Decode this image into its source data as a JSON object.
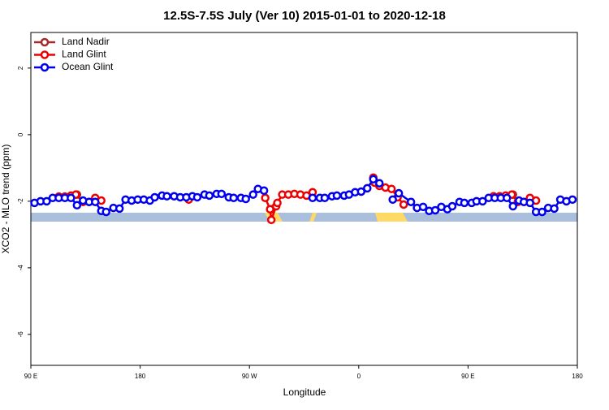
{
  "chart_data": {
    "type": "line",
    "title": "12.5S-7.5S July (Ver 10)   2015-01-01 to 2020-12-18",
    "xlabel": "Longitude",
    "ylabel": "XCO2 - MLO trend (ppm)",
    "xlim": [
      90,
      540
    ],
    "ylim": [
      -6.93,
      3.07
    ],
    "xticks": [
      {
        "value": 90,
        "label": "90 E"
      },
      180,
      {
        "value": 270,
        "label": "90 W"
      },
      {
        "value": 360,
        "label": "0"
      },
      {
        "value": 450,
        "label": "90 E"
      },
      {
        "value": 540,
        "label": "180"
      }
    ],
    "yticks": [
      2,
      0,
      -2,
      -4,
      -6
    ],
    "legend": "top-left",
    "series": [
      {
        "name": "Land Nadir",
        "color": "#a52a2a",
        "x": [
          128,
          null,
          288,
          null,
          487
        ],
        "values": [
          -1.8,
          null,
          -2.24,
          null,
          -1.8
        ]
      },
      {
        "name": "Land Glint",
        "color": "#ee0000",
        "x": [
          113,
          118,
          123,
          127,
          133,
          138,
          143,
          148,
          null,
          220,
          null,
          283,
          287,
          288,
          292,
          293,
          297,
          302,
          307,
          312,
          317,
          322,
          null,
          372,
          373,
          377,
          382,
          387,
          392,
          397,
          null,
          471,
          476,
          481,
          486,
          491,
          496,
          501,
          506
        ],
        "values": [
          -1.86,
          -1.86,
          -1.83,
          -1.8,
          -2.02,
          -2.02,
          -1.9,
          -1.98,
          null,
          -1.95,
          null,
          -1.9,
          -2.24,
          -2.56,
          -2.15,
          -2.05,
          -1.8,
          -1.8,
          -1.78,
          -1.8,
          -1.83,
          -1.73,
          null,
          -1.29,
          -1.44,
          -1.54,
          -1.59,
          -1.63,
          -1.88,
          -2.1,
          null,
          -1.85,
          -1.85,
          -1.83,
          -1.8,
          -2.02,
          -2.02,
          -1.9,
          -1.98
        ]
      },
      {
        "name": "Ocean Glint",
        "color": "#0000ee",
        "x": [
          93,
          98,
          103,
          108,
          113,
          118,
          123,
          128,
          133,
          138,
          143,
          148,
          152,
          158,
          163,
          168,
          173,
          178,
          183,
          188,
          192,
          198,
          202,
          208,
          213,
          218,
          223,
          227,
          233,
          237,
          243,
          247,
          253,
          257,
          263,
          267,
          273,
          277,
          282,
          null,
          322,
          328,
          332,
          338,
          342,
          348,
          352,
          357,
          362,
          367,
          372,
          377,
          null,
          388,
          393,
          403,
          408,
          413,
          418,
          423,
          428,
          433,
          437,
          443,
          447,
          453,
          457,
          462,
          467,
          472,
          477,
          482,
          487,
          492,
          496,
          501,
          506,
          511,
          516,
          521,
          526,
          531,
          536
        ],
        "values": [
          -2.05,
          -2.0,
          -2.0,
          -1.9,
          -1.9,
          -1.9,
          -1.9,
          -2.12,
          -1.98,
          -2.02,
          -2.02,
          -2.29,
          -2.32,
          -2.2,
          -2.22,
          -1.95,
          -1.98,
          -1.95,
          -1.95,
          -1.98,
          -1.88,
          -1.83,
          -1.85,
          -1.85,
          -1.88,
          -1.88,
          -1.85,
          -1.88,
          -1.8,
          -1.83,
          -1.78,
          -1.78,
          -1.88,
          -1.9,
          -1.9,
          -1.93,
          -1.8,
          -1.63,
          -1.68,
          null,
          -1.9,
          -1.9,
          -1.9,
          -1.85,
          -1.83,
          -1.83,
          -1.8,
          -1.73,
          -1.71,
          -1.61,
          -1.34,
          -1.46,
          null,
          -1.95,
          -1.76,
          -2.02,
          -2.2,
          -2.17,
          -2.29,
          -2.27,
          -2.17,
          -2.24,
          -2.15,
          -2.02,
          -2.05,
          -2.05,
          -2.0,
          -2.0,
          -1.9,
          -1.9,
          -1.9,
          -1.9,
          -2.15,
          -1.98,
          -2.02,
          -2.05,
          -2.32,
          -2.32,
          -2.2,
          -2.22,
          -1.95,
          -2.0,
          -1.95
        ]
      }
    ]
  }
}
